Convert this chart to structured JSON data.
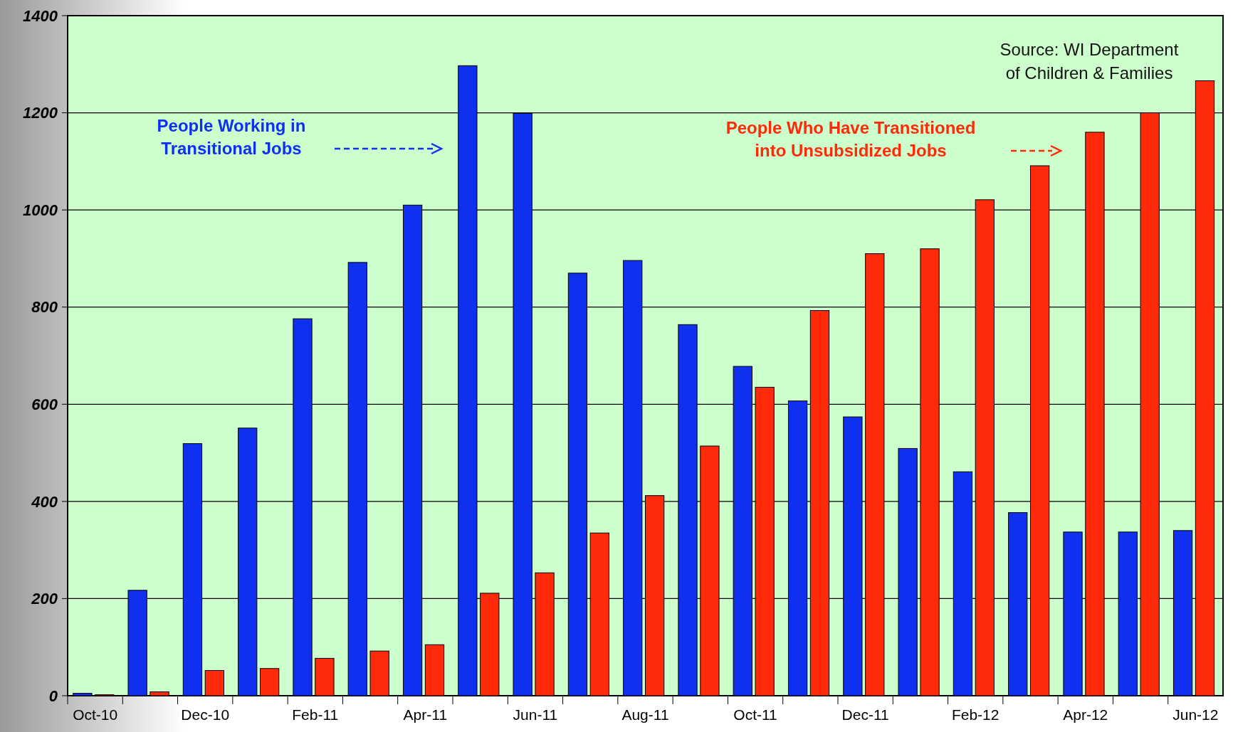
{
  "chart_data": {
    "type": "bar",
    "categories": [
      "Oct-10",
      null,
      "Dec-10",
      null,
      "Feb-11",
      null,
      "Apr-11",
      null,
      "Jun-11",
      null,
      "Aug-11",
      null,
      "Oct-11",
      null,
      "Dec-11",
      null,
      "Feb-12",
      null,
      "Apr-12",
      null,
      "Jun-12"
    ],
    "series": [
      {
        "name": "People Working in Transitional Jobs",
        "color": "#1030f0",
        "values": [
          5,
          217,
          519,
          551,
          776,
          892,
          1010,
          1297,
          1199,
          870,
          896,
          764,
          678,
          607,
          574,
          509,
          461,
          377,
          337,
          337,
          340
        ]
      },
      {
        "name": "People Who Have Transitioned into Unsubsidized Jobs",
        "color": "#ff2a0a",
        "values": [
          2,
          8,
          52,
          56,
          77,
          92,
          105,
          211,
          253,
          335,
          412,
          514,
          635,
          793,
          910,
          920,
          1021,
          1091,
          1160,
          1200,
          1266
        ]
      }
    ],
    "ylim": [
      0,
      1400
    ],
    "yticks": [
      0,
      200,
      400,
      600,
      800,
      1000,
      1200,
      1400
    ],
    "grid": "y",
    "annotations": [
      "Source: WI Department of Children & Families"
    ]
  }
}
